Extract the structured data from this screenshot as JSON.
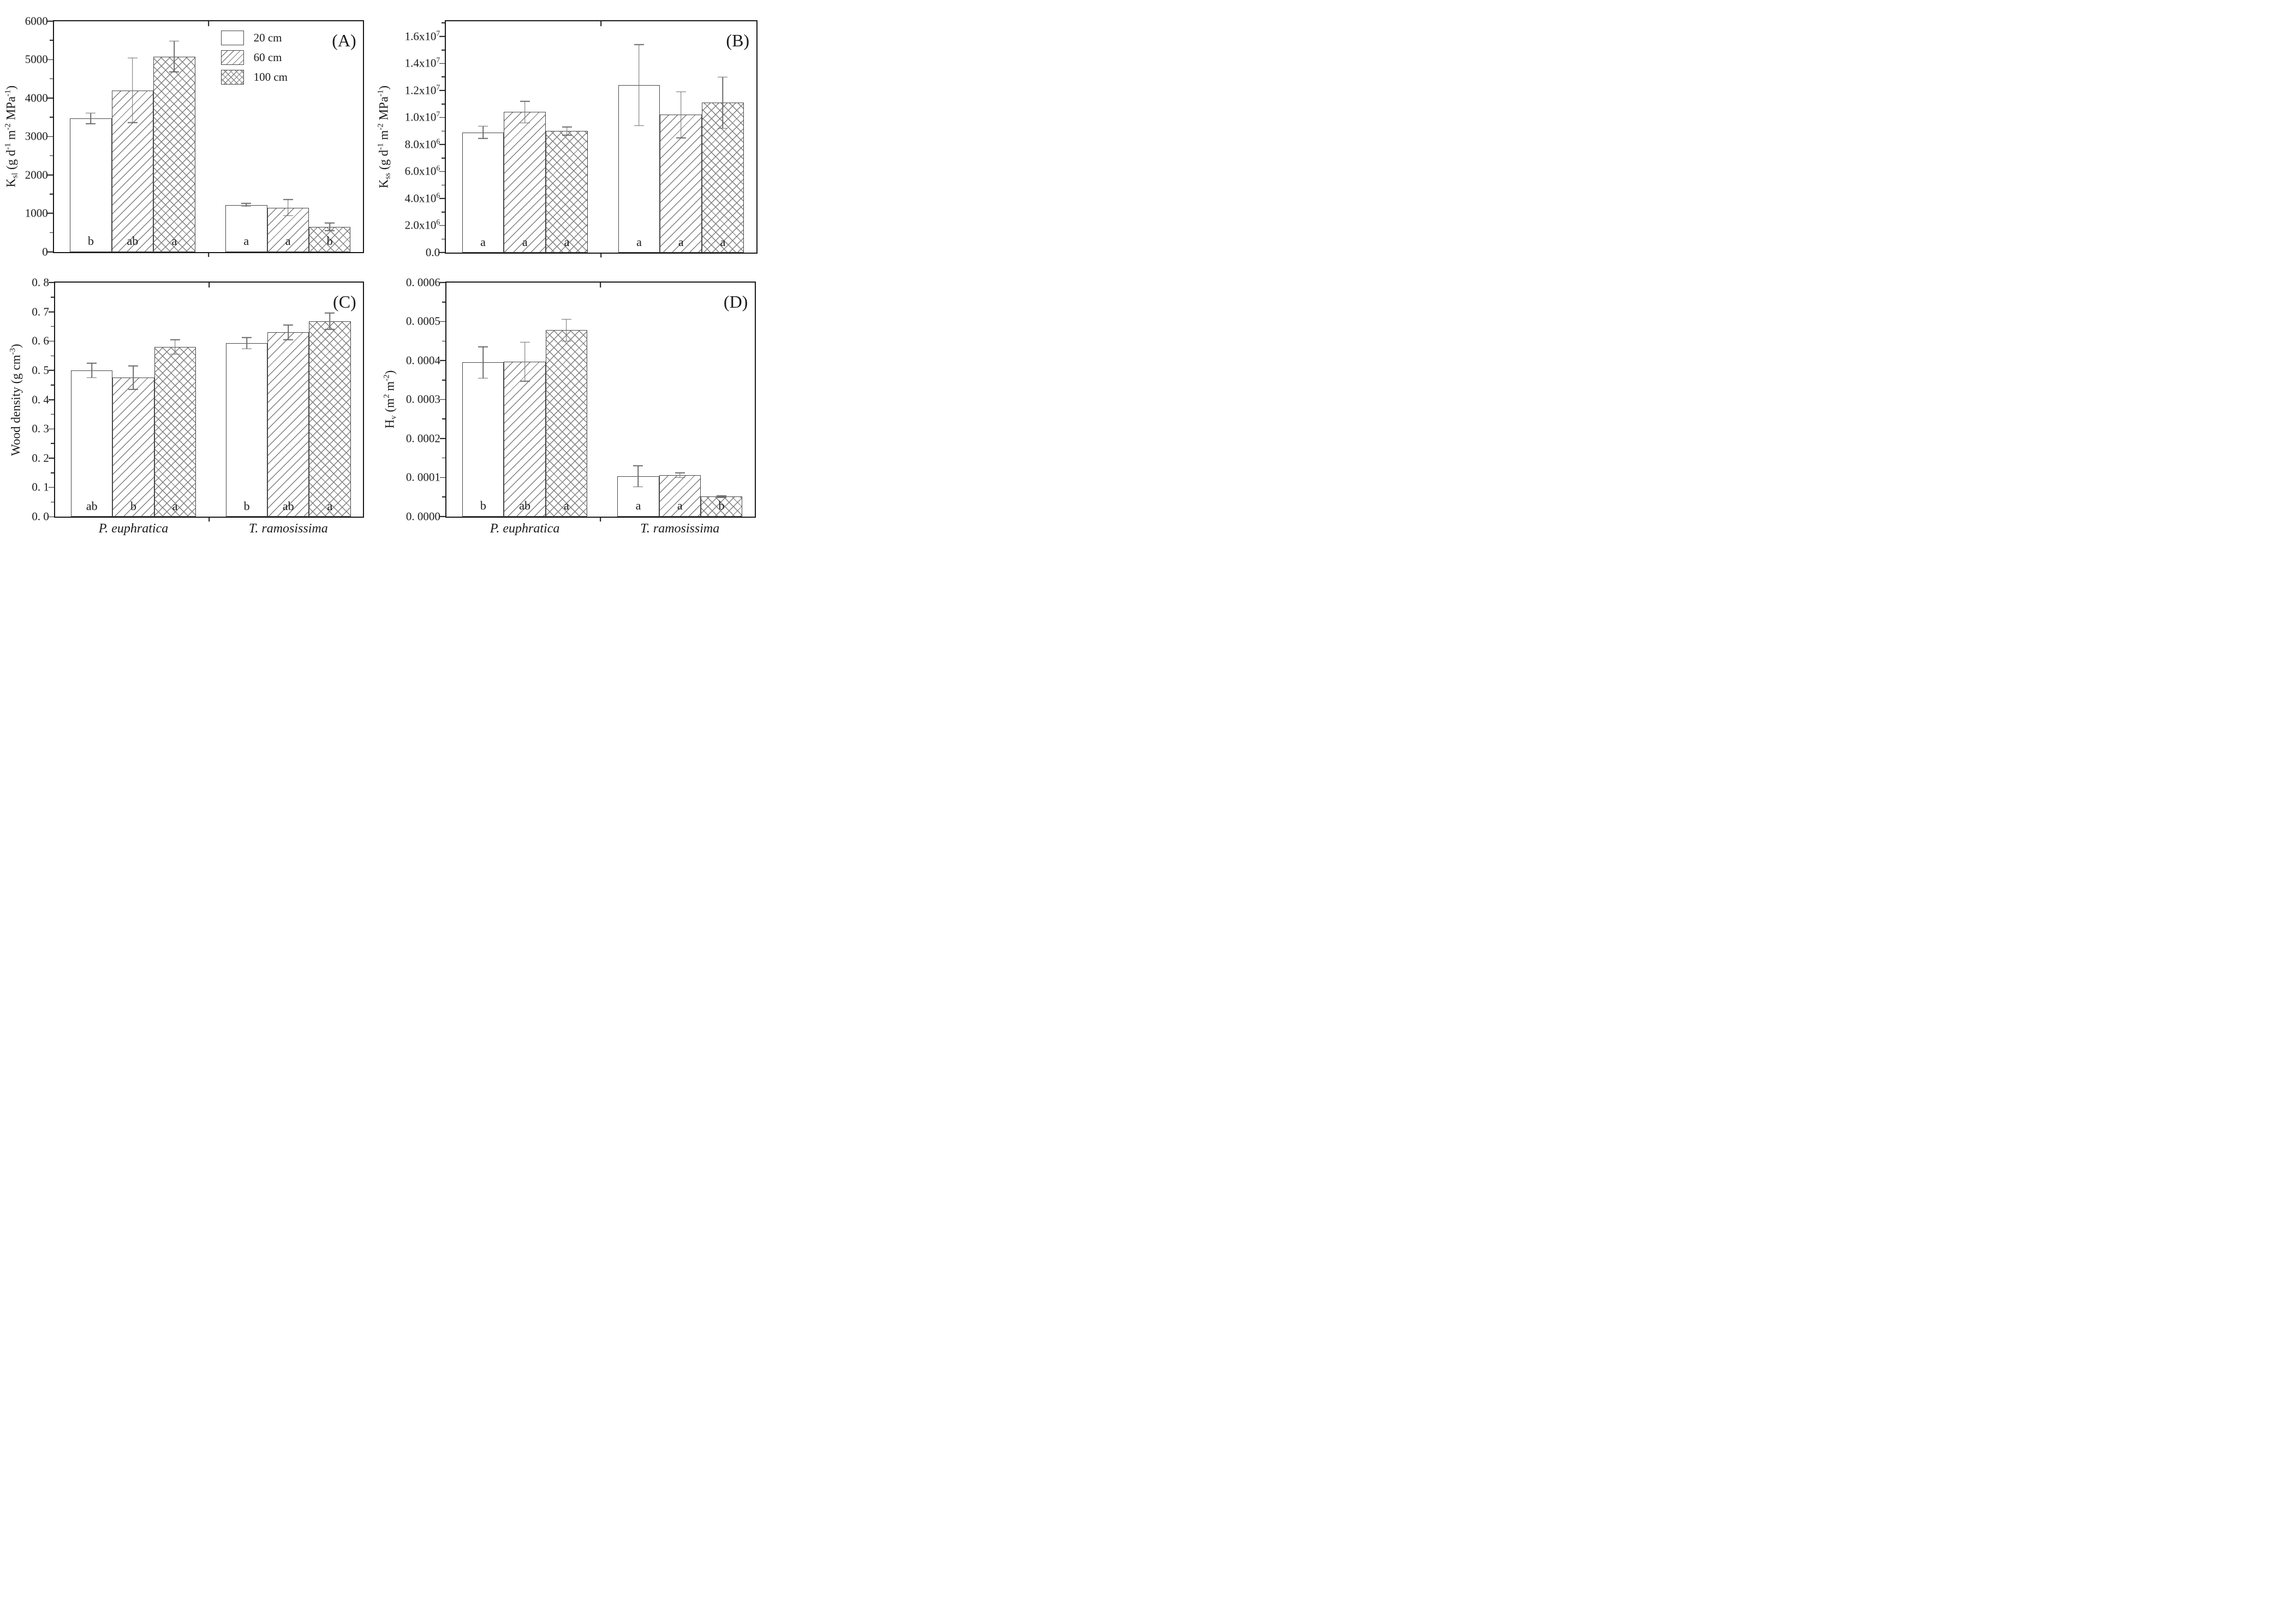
{
  "figure_background": "#ffffff",
  "axis_color": "#1a1a1a",
  "bar_edge_color": "#474747",
  "hatch_color": "#7d7d7d",
  "error_bar_color": "#6b6b6b",
  "legend": {
    "items": [
      {
        "label": "20 cm",
        "pattern": "plain"
      },
      {
        "label": "60 cm",
        "pattern": "diagonal"
      },
      {
        "label": "100 cm",
        "pattern": "crosshatch"
      }
    ]
  },
  "categories": [
    "P. euphratica",
    "T. ramosissima"
  ],
  "chart_data": [
    {
      "id": "A",
      "type": "bar",
      "panel_label": "(A)",
      "ylabel_rich": [
        [
          "K",
          ""
        ],
        [
          "sl",
          "sub"
        ],
        [
          " (g d",
          ""
        ],
        [
          "-1",
          "sup"
        ],
        [
          " m",
          ""
        ],
        [
          "-2",
          "sup"
        ],
        [
          " MPa",
          ""
        ],
        [
          "-1",
          "sup"
        ],
        [
          ")",
          ""
        ]
      ],
      "ylim": [
        0,
        6000
      ],
      "yticks": [
        {
          "v": 0,
          "label": "0"
        },
        {
          "v": 1000,
          "label": "1000"
        },
        {
          "v": 2000,
          "label": "2000"
        },
        {
          "v": 3000,
          "label": "3000"
        },
        {
          "v": 4000,
          "label": "4000"
        },
        {
          "v": 5000,
          "label": "5000"
        },
        {
          "v": 6000,
          "label": "6000"
        }
      ],
      "minor_tick_step": 500,
      "series": [
        "20 cm",
        "60 cm",
        "100 cm"
      ],
      "groups": [
        {
          "category": "P. euphratica",
          "values": [
            3470,
            4200,
            5080
          ],
          "errors": [
            140,
            840,
            400
          ],
          "letters": [
            "b",
            "ab",
            "a"
          ]
        },
        {
          "category": "T. ramosissima",
          "values": [
            1220,
            1150,
            650
          ],
          "errors": [
            40,
            210,
            100
          ],
          "letters": [
            "a",
            "a",
            "b"
          ]
        }
      ],
      "show_legend": true,
      "show_category_labels": false
    },
    {
      "id": "B",
      "type": "bar",
      "panel_label": "(B)",
      "ylabel_rich": [
        [
          "K",
          ""
        ],
        [
          "ss",
          "sub"
        ],
        [
          " (g d",
          ""
        ],
        [
          "-1",
          "sup"
        ],
        [
          " m",
          ""
        ],
        [
          "-2",
          "sup"
        ],
        [
          " MPa",
          ""
        ],
        [
          "-1",
          "sup"
        ],
        [
          ")",
          ""
        ]
      ],
      "ylim": [
        0,
        17130000
      ],
      "yticks": [
        {
          "v": 0,
          "label": "0.0"
        },
        {
          "v": 2000000,
          "label_rich": [
            [
              "2.0x10",
              ""
            ],
            [
              "6",
              "sup"
            ]
          ]
        },
        {
          "v": 4000000,
          "label_rich": [
            [
              "4.0x10",
              ""
            ],
            [
              "6",
              "sup"
            ]
          ]
        },
        {
          "v": 6000000,
          "label_rich": [
            [
              "6.0x10",
              ""
            ],
            [
              "6",
              "sup"
            ]
          ]
        },
        {
          "v": 8000000,
          "label_rich": [
            [
              "8.0x10",
              ""
            ],
            [
              "6",
              "sup"
            ]
          ]
        },
        {
          "v": 10000000,
          "label_rich": [
            [
              "1.0x10",
              ""
            ],
            [
              "7",
              "sup"
            ]
          ]
        },
        {
          "v": 12000000,
          "label_rich": [
            [
              "1.2x10",
              ""
            ],
            [
              "7",
              "sup"
            ]
          ]
        },
        {
          "v": 14000000,
          "label_rich": [
            [
              "1.4x10",
              ""
            ],
            [
              "7",
              "sup"
            ]
          ]
        },
        {
          "v": 16000000,
          "label_rich": [
            [
              "1.6x10",
              ""
            ],
            [
              "7",
              "sup"
            ]
          ]
        }
      ],
      "minor_tick_step": 1000000,
      "series": [
        "20 cm",
        "60 cm",
        "100 cm"
      ],
      "groups": [
        {
          "category": "P. euphratica",
          "values": [
            8900000,
            10400000,
            9000000
          ],
          "errors": [
            450000,
            800000,
            300000
          ],
          "letters": [
            "a",
            "a",
            "a"
          ]
        },
        {
          "category": "T. ramosissima",
          "values": [
            12400000,
            10200000,
            11100000
          ],
          "errors": [
            3000000,
            1700000,
            1900000
          ],
          "letters": [
            "a",
            "a",
            "a"
          ]
        }
      ],
      "show_legend": false,
      "show_category_labels": false
    },
    {
      "id": "C",
      "type": "bar",
      "panel_label": "(C)",
      "ylabel_rich": [
        [
          "Wood density (g cm",
          ""
        ],
        [
          "-3",
          "sup"
        ],
        [
          ")",
          ""
        ]
      ],
      "ylim": [
        0,
        0.8
      ],
      "yticks": [
        {
          "v": 0.0,
          "label": "0. 0"
        },
        {
          "v": 0.1,
          "label": "0. 1"
        },
        {
          "v": 0.2,
          "label": "0. 2"
        },
        {
          "v": 0.3,
          "label": "0. 3"
        },
        {
          "v": 0.4,
          "label": "0. 4"
        },
        {
          "v": 0.5,
          "label": "0. 5"
        },
        {
          "v": 0.6,
          "label": "0. 6"
        },
        {
          "v": 0.7,
          "label": "0. 7"
        },
        {
          "v": 0.8,
          "label": "0. 8"
        }
      ],
      "minor_tick_step": 0.05,
      "series": [
        "20 cm",
        "60 cm",
        "100 cm"
      ],
      "groups": [
        {
          "category": "P. euphratica",
          "values": [
            0.5,
            0.475,
            0.58
          ],
          "errors": [
            0.025,
            0.04,
            0.025
          ],
          "letters": [
            "ab",
            "b",
            "a"
          ]
        },
        {
          "category": "T. ramosissima",
          "values": [
            0.593,
            0.63,
            0.668
          ],
          "errors": [
            0.019,
            0.025,
            0.028
          ],
          "letters": [
            "b",
            "ab",
            "a"
          ]
        }
      ],
      "show_legend": false,
      "show_category_labels": true
    },
    {
      "id": "D",
      "type": "bar",
      "panel_label": "(D)",
      "ylabel_rich": [
        [
          "H",
          ""
        ],
        [
          "v",
          "sub"
        ],
        [
          " (m",
          ""
        ],
        [
          "2",
          "sup"
        ],
        [
          " m",
          ""
        ],
        [
          "-2",
          "sup"
        ],
        [
          ")",
          ""
        ]
      ],
      "ylim": [
        0,
        0.0006
      ],
      "yticks": [
        {
          "v": 0.0,
          "label": "0. 0000"
        },
        {
          "v": 0.0001,
          "label": "0. 0001"
        },
        {
          "v": 0.0002,
          "label": "0. 0002"
        },
        {
          "v": 0.0003,
          "label": "0. 0003"
        },
        {
          "v": 0.0004,
          "label": "0. 0004"
        },
        {
          "v": 0.0005,
          "label": "0. 0005"
        },
        {
          "v": 0.0006,
          "label": "0. 0006"
        }
      ],
      "minor_tick_step": 5e-05,
      "series": [
        "20 cm",
        "60 cm",
        "100 cm"
      ],
      "groups": [
        {
          "category": "P. euphratica",
          "values": [
            0.000395,
            0.000397,
            0.000478
          ],
          "errors": [
            4e-05,
            5e-05,
            2.8e-05
          ],
          "letters": [
            "b",
            "ab",
            "a"
          ]
        },
        {
          "category": "T. ramosissima",
          "values": [
            0.000103,
            0.000106,
            5.1e-05
          ],
          "errors": [
            2.7e-05,
            6e-06,
            2e-06
          ],
          "letters": [
            "a",
            "a",
            "b"
          ]
        }
      ],
      "show_legend": false,
      "show_category_labels": true
    }
  ]
}
